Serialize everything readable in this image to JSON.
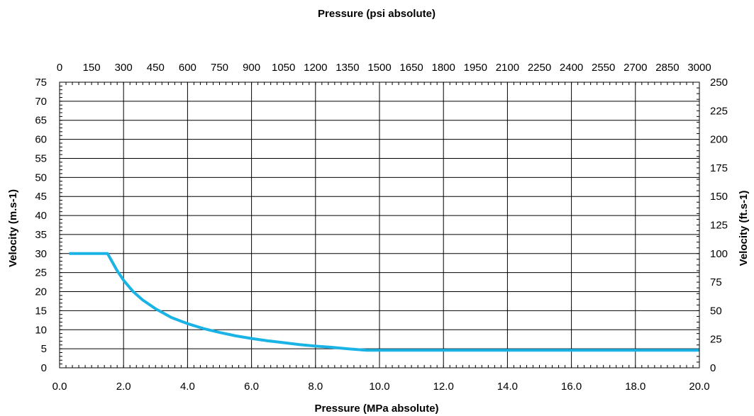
{
  "chart_data": {
    "type": "line",
    "title": "",
    "xlabel": "Pressure (MPa absolute)",
    "x2label": "Pressure (psi absolute)",
    "ylabel": "Velocity (m.s-1)",
    "y2label": "Velocity (ft.s-1)",
    "xlim": [
      0,
      20
    ],
    "ylim": [
      0,
      75
    ],
    "x2lim": [
      0,
      3000
    ],
    "y2lim": [
      0,
      250
    ],
    "grid": true,
    "legend": "none",
    "x_ticks": [
      "0.0",
      "2.0",
      "4.0",
      "6.0",
      "8.0",
      "10.0",
      "12.0",
      "14.0",
      "16.0",
      "18.0",
      "20.0"
    ],
    "x2_ticks": [
      "0",
      "150",
      "300",
      "450",
      "600",
      "750",
      "900",
      "1050",
      "1200",
      "1350",
      "1500",
      "1650",
      "1800",
      "1950",
      "2100",
      "2250",
      "2400",
      "2550",
      "2700",
      "2850",
      "3000"
    ],
    "y_ticks": [
      "0",
      "5",
      "10",
      "15",
      "20",
      "25",
      "30",
      "35",
      "40",
      "45",
      "50",
      "55",
      "60",
      "65",
      "70",
      "75"
    ],
    "y2_ticks": [
      "0",
      "25",
      "50",
      "75",
      "100",
      "125",
      "150",
      "175",
      "200",
      "225",
      "250"
    ],
    "series": [
      {
        "color": "#1ab3e6",
        "x": [
          0.3,
          1.5,
          1.6,
          1.8,
          2.0,
          2.3,
          2.6,
          3.0,
          3.5,
          4.0,
          4.5,
          5.0,
          5.5,
          6.0,
          6.5,
          7.0,
          7.5,
          8.0,
          8.5,
          9.0,
          9.6,
          10.0,
          12.0,
          14.0,
          16.0,
          18.0,
          20.0
        ],
        "y": [
          30,
          30,
          28.5,
          25.5,
          23.0,
          20.0,
          17.8,
          15.5,
          13.2,
          11.6,
          10.3,
          9.3,
          8.4,
          7.7,
          7.1,
          6.6,
          6.1,
          5.7,
          5.4,
          5.0,
          4.6,
          4.6,
          4.6,
          4.6,
          4.6,
          4.6,
          4.6
        ]
      }
    ]
  }
}
